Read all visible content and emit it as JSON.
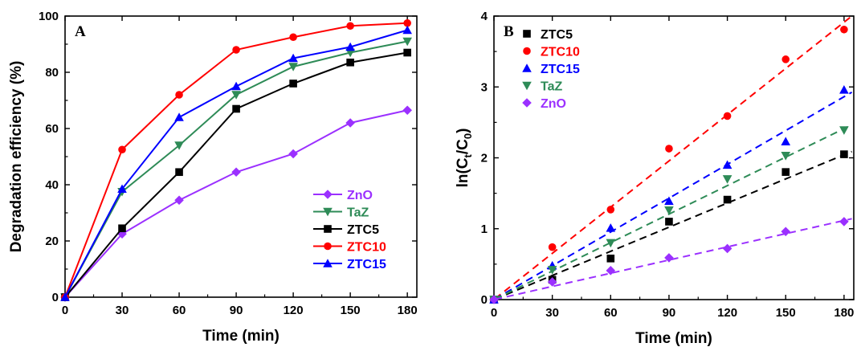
{
  "chart_data": [
    {
      "type": "line",
      "panel_label": "A",
      "xlabel": "Time (min)",
      "ylabel": "Degradation efficiency (%)",
      "xlim": [
        0,
        185
      ],
      "ylim": [
        0,
        100
      ],
      "xticks": [
        0,
        30,
        60,
        90,
        120,
        150,
        180
      ],
      "yticks": [
        0,
        20,
        40,
        60,
        80,
        100
      ],
      "legend_position": "bottom-right",
      "x": [
        0,
        30,
        60,
        90,
        120,
        150,
        180
      ],
      "series": [
        {
          "name": "ZnO",
          "color": "#9b30ff",
          "marker": "diamond",
          "values": [
            0,
            22.5,
            34.5,
            44.5,
            51,
            62,
            66.5
          ]
        },
        {
          "name": "TaZ",
          "color": "#2e8b57",
          "marker": "triangle-down",
          "values": [
            0,
            37.5,
            54,
            72,
            82,
            87,
            91
          ]
        },
        {
          "name": "ZTC5",
          "color": "#000000",
          "marker": "square",
          "values": [
            0,
            24.5,
            44.5,
            67,
            76,
            83.5,
            87
          ]
        },
        {
          "name": "ZTC10",
          "color": "#ff0000",
          "marker": "circle",
          "values": [
            0,
            52.5,
            72,
            88,
            92.5,
            96.5,
            97.5
          ]
        },
        {
          "name": "ZTC15",
          "color": "#0000ff",
          "marker": "triangle-up",
          "values": [
            0,
            38.5,
            64,
            75,
            85,
            89,
            95
          ]
        }
      ]
    },
    {
      "type": "scatter",
      "panel_label": "B",
      "xlabel": "Time (min)",
      "ylabel_parts": [
        "ln(C",
        "t",
        "/C",
        "0",
        ")"
      ],
      "xlim": [
        0,
        185
      ],
      "ylim": [
        0,
        4
      ],
      "xticks": [
        0,
        30,
        60,
        90,
        120,
        150,
        180
      ],
      "yticks": [
        0,
        1,
        2,
        3,
        4
      ],
      "legend_position": "top-left",
      "fit_lines": "dashed linear fits through origin",
      "x": [
        0,
        30,
        60,
        90,
        120,
        150,
        180
      ],
      "series": [
        {
          "name": "ZTC5",
          "color": "#000000",
          "marker": "square",
          "values": [
            0,
            0.28,
            0.58,
            1.1,
            1.41,
            1.8,
            2.05
          ],
          "slope": 0.01135
        },
        {
          "name": "ZTC10",
          "color": "#ff0000",
          "marker": "circle",
          "values": [
            0,
            0.74,
            1.27,
            2.13,
            2.59,
            3.39,
            3.81
          ],
          "slope": 0.02195
        },
        {
          "name": "ZTC15",
          "color": "#0000ff",
          "marker": "triangle-up",
          "values": [
            0,
            0.48,
            1.01,
            1.39,
            1.9,
            2.23,
            2.96
          ],
          "slope": 0.0159
        },
        {
          "name": "TaZ",
          "color": "#2e8b57",
          "marker": "triangle-down",
          "values": [
            0,
            0.42,
            0.8,
            1.26,
            1.7,
            2.03,
            2.39
          ],
          "slope": 0.0134
        },
        {
          "name": "ZnO",
          "color": "#9b30ff",
          "marker": "diamond",
          "values": [
            0,
            0.25,
            0.41,
            0.59,
            0.72,
            0.96,
            1.1
          ],
          "slope": 0.0062
        }
      ]
    }
  ]
}
